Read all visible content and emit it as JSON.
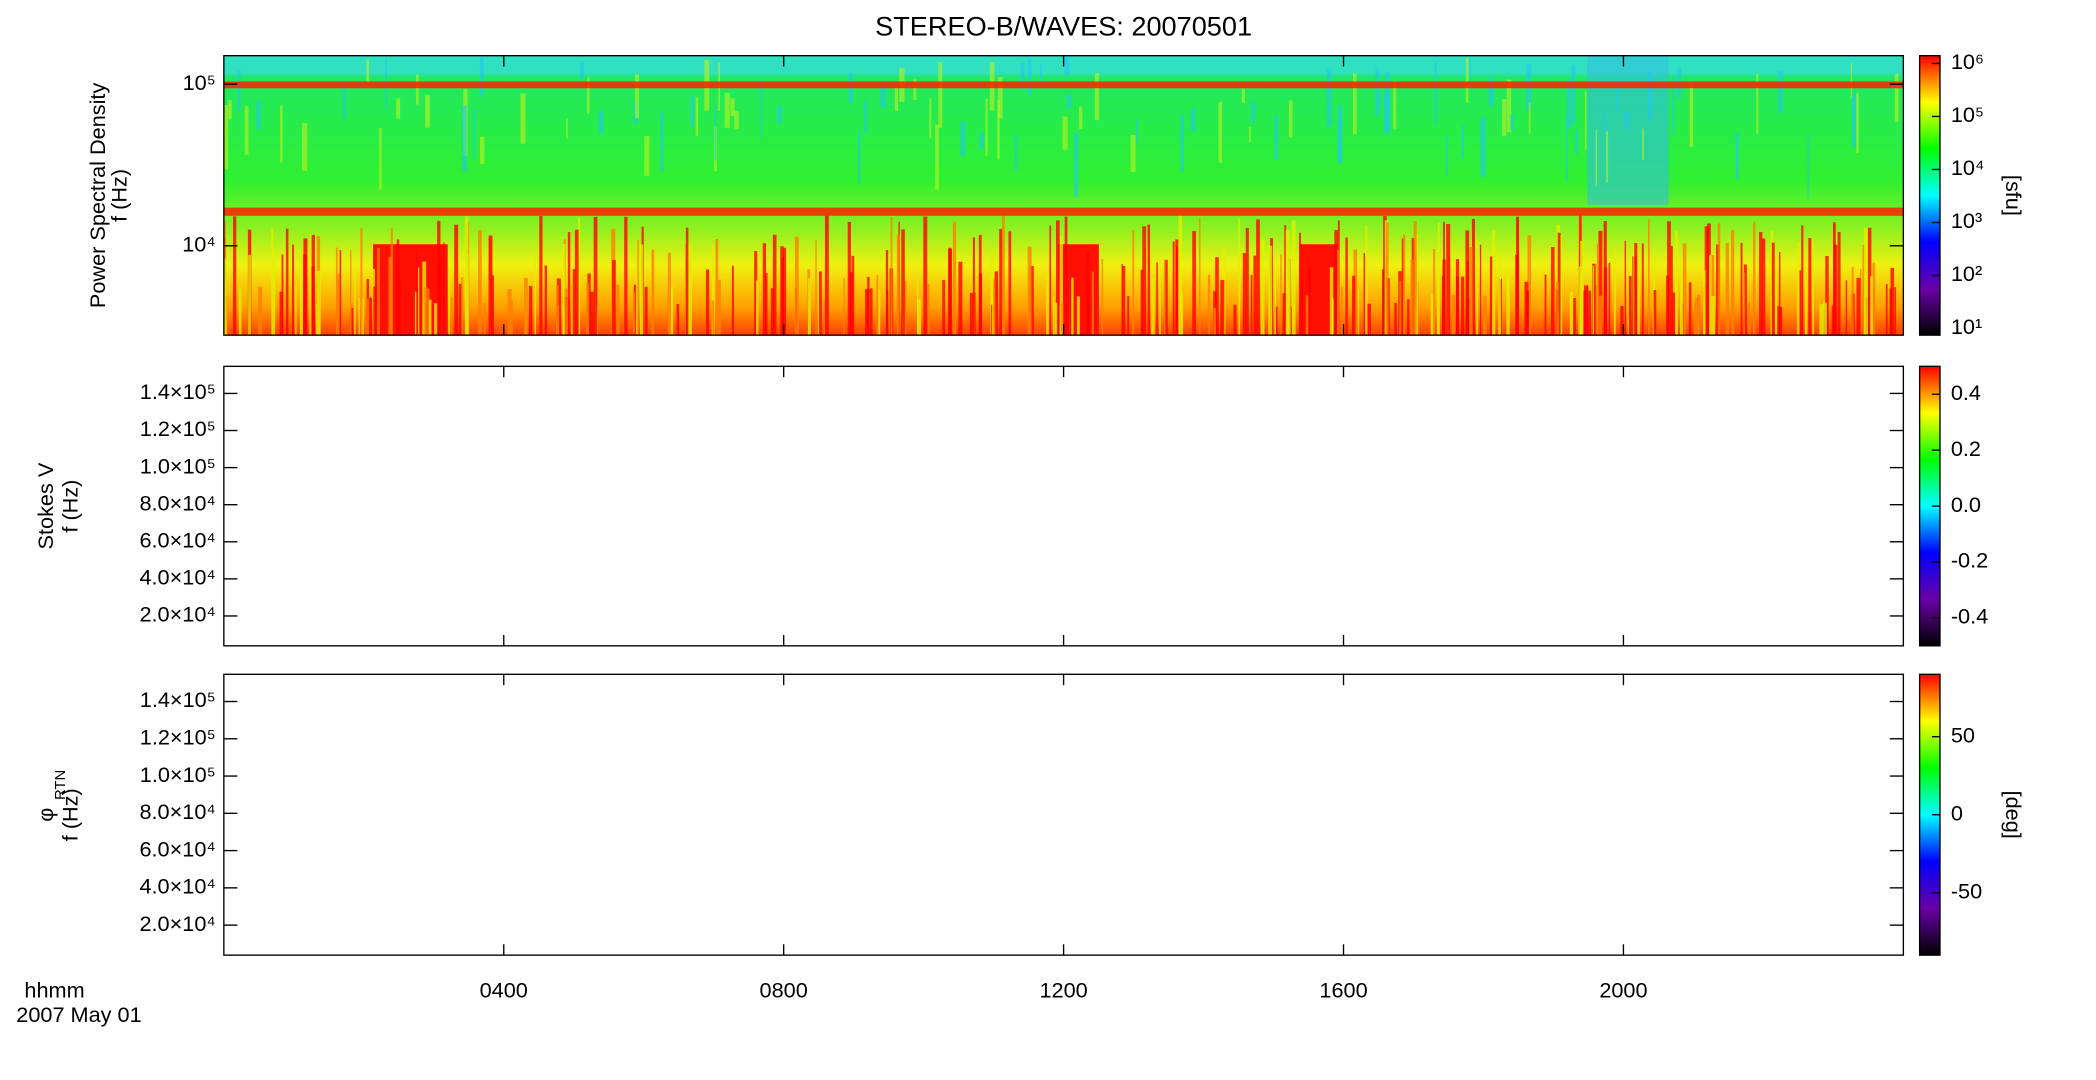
{
  "title": "STEREO-B/WAVES: 20070501",
  "x_axis": {
    "label": "hhmm",
    "date": "2007 May 01",
    "xlim": [
      0,
      24
    ],
    "xticks": [
      {
        "value": 4,
        "label": "0400"
      },
      {
        "value": 8,
        "label": "0800"
      },
      {
        "value": 12,
        "label": "1200"
      },
      {
        "value": 16,
        "label": "1600"
      },
      {
        "value": 20,
        "label": "2000"
      }
    ]
  },
  "colormap": [
    "#000000",
    "#6a00a8",
    "#0000ff",
    "#00ffff",
    "#00ff00",
    "#ffff00",
    "#ff0000"
  ],
  "chart_data": [
    {
      "type": "heatmap",
      "ylabel": [
        "Power Spectral Density",
        "f (Hz)"
      ],
      "log_y": true,
      "ylim": [
        2800,
        150000
      ],
      "yticks": [
        {
          "value": 10000,
          "label": "10⁴"
        },
        {
          "value": 100000,
          "label": "10⁵"
        }
      ],
      "colorbar": {
        "label": "[sfu]",
        "log": true,
        "lim": [
          7.5,
          1400000
        ],
        "ticks": [
          {
            "value": 10,
            "label": "10¹"
          },
          {
            "value": 100,
            "label": "10²"
          },
          {
            "value": 1000,
            "label": "10³"
          },
          {
            "value": 10000,
            "label": "10⁴"
          },
          {
            "value": 100000,
            "label": "10⁵"
          },
          {
            "value": 1000000,
            "label": "10⁶"
          }
        ]
      }
    },
    {
      "type": "heatmap",
      "ylabel": [
        "Stokes V",
        "f (Hz)"
      ],
      "log_y": false,
      "ylim": [
        3900,
        154600
      ],
      "yticks": [
        {
          "value": 20000,
          "label": "2.0×10⁴"
        },
        {
          "value": 40000,
          "label": "4.0×10⁴"
        },
        {
          "value": 60000,
          "label": "6.0×10⁴"
        },
        {
          "value": 80000,
          "label": "8.0×10⁴"
        },
        {
          "value": 100000,
          "label": "1.0×10⁵"
        },
        {
          "value": 120000,
          "label": "1.2×10⁵"
        },
        {
          "value": 140000,
          "label": "1.4×10⁵"
        }
      ],
      "colorbar": {
        "label": "",
        "log": false,
        "lim": [
          -0.5,
          0.5
        ],
        "ticks": [
          {
            "value": -0.4,
            "label": "-0.4"
          },
          {
            "value": -0.2,
            "label": "-0.2"
          },
          {
            "value": 0,
            "label": "0.0"
          },
          {
            "value": 0.2,
            "label": "0.2"
          },
          {
            "value": 0.4,
            "label": "0.4"
          }
        ]
      }
    },
    {
      "type": "heatmap",
      "ylabel": [
        "φ",
        "f (Hz)"
      ],
      "ylabel_sub": "RTN",
      "log_y": false,
      "ylim": [
        3900,
        154600
      ],
      "yticks": [
        {
          "value": 20000,
          "label": "2.0×10⁴"
        },
        {
          "value": 40000,
          "label": "4.0×10⁴"
        },
        {
          "value": 60000,
          "label": "6.0×10⁴"
        },
        {
          "value": 80000,
          "label": "8.0×10⁴"
        },
        {
          "value": 100000,
          "label": "1.0×10⁵"
        },
        {
          "value": 120000,
          "label": "1.2×10⁵"
        },
        {
          "value": 140000,
          "label": "1.4×10⁵"
        }
      ],
      "colorbar": {
        "label": "[deg]",
        "log": false,
        "lim": [
          -90,
          90
        ],
        "ticks": [
          -50,
          0,
          50
        ]
      }
    }
  ]
}
